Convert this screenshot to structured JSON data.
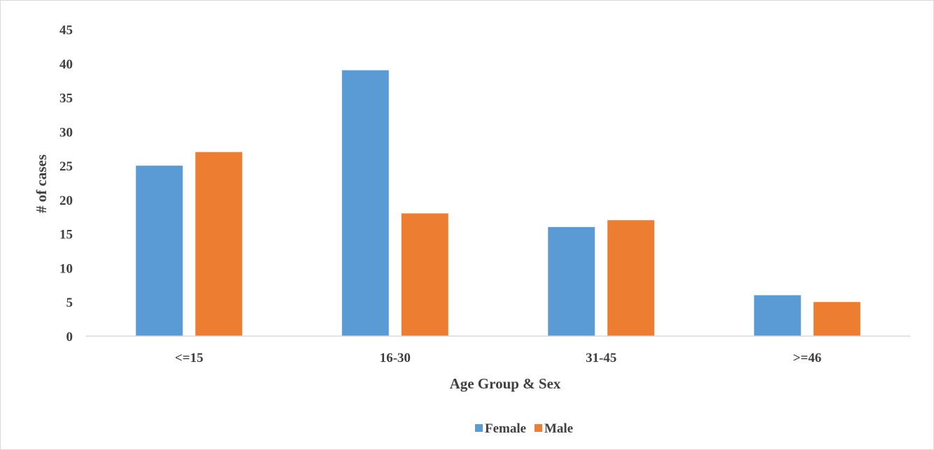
{
  "chart_data": {
    "type": "bar",
    "title": "",
    "xlabel": "Age Group & Sex",
    "ylabel": "# of cases",
    "categories": [
      "<=15",
      "16-30",
      "31-45",
      ">=46"
    ],
    "series": [
      {
        "name": "Female",
        "values": [
          25,
          39,
          16,
          6
        ],
        "color": "#5b9bd5"
      },
      {
        "name": "Male",
        "values": [
          27,
          18,
          17,
          5
        ],
        "color": "#ed7d31"
      }
    ],
    "ylim": [
      0,
      45
    ],
    "yticks": [
      "0",
      "5",
      "10",
      "15",
      "20",
      "25",
      "30",
      "35",
      "40",
      "45"
    ],
    "grid": false,
    "legend_position": "bottom"
  }
}
